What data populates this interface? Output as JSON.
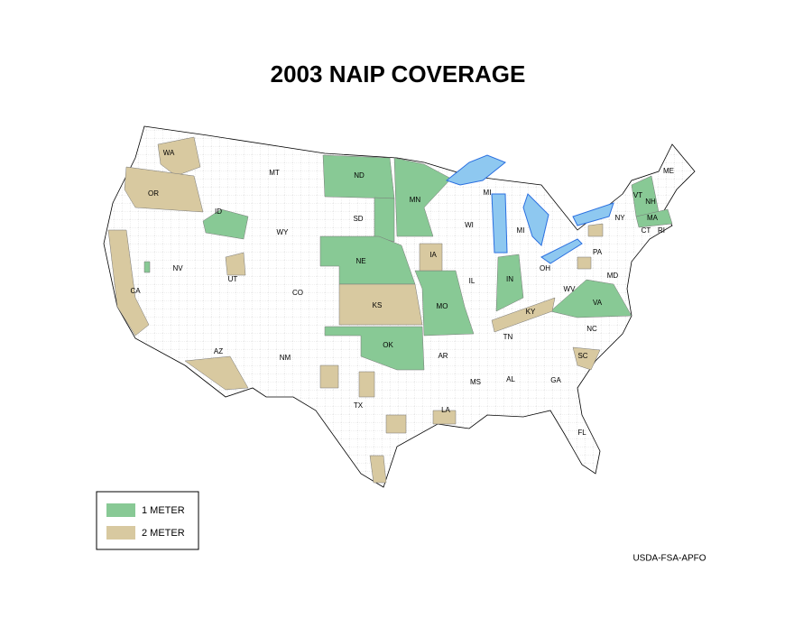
{
  "title": "2003 NAIP COVERAGE",
  "legend": [
    {
      "label": "1 METER",
      "color": "#88c995"
    },
    {
      "label": "2 METER",
      "color": "#d8c9a0"
    }
  ],
  "states": [
    "WA",
    "OR",
    "CA",
    "NV",
    "ID",
    "MT",
    "WY",
    "UT",
    "CO",
    "AZ",
    "NM",
    "ND",
    "SD",
    "NE",
    "KS",
    "OK",
    "TX",
    "MN",
    "IA",
    "MO",
    "AR",
    "LA",
    "WI",
    "IL",
    "MI",
    "MI",
    "IN",
    "OH",
    "KY",
    "TN",
    "MS",
    "AL",
    "GA",
    "FL",
    "SC",
    "NC",
    "VA",
    "WV",
    "PA",
    "NY",
    "VT",
    "NH",
    "ME",
    "MA",
    "CT",
    "RI",
    "MD"
  ],
  "credit": "USDA-FSA-APFO"
}
